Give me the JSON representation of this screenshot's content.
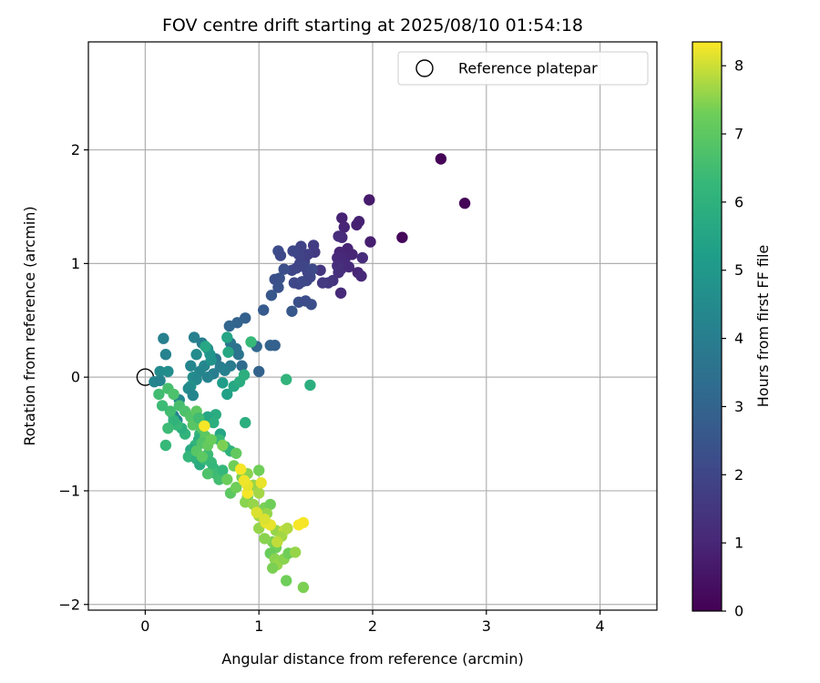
{
  "chart_data": {
    "type": "scatter",
    "title": "FOV centre drift starting at 2025/08/10 01:54:18",
    "xlabel": "Angular distance from reference (arcmin)",
    "ylabel": "Rotation from reference (arcmin)",
    "xlim": [
      -0.5,
      4.5
    ],
    "ylim": [
      -2.05,
      2.95
    ],
    "xticks": [
      0,
      1,
      2,
      3,
      4
    ],
    "yticks": [
      -2,
      -1,
      0,
      1,
      2
    ],
    "xtick_labels": [
      "0",
      "1",
      "2",
      "3",
      "4"
    ],
    "ytick_labels": [
      "−2",
      "−1",
      "0",
      "1",
      "2"
    ],
    "grid": true,
    "legend": {
      "position": "top-right",
      "label": "Reference platepar"
    },
    "reference_point": {
      "x": 0,
      "y": 0
    },
    "colorbar": {
      "label": "Hours from first FF file",
      "colormap": "viridis",
      "range": [
        0,
        8.35
      ],
      "ticks": [
        0,
        1,
        2,
        3,
        4,
        5,
        6,
        7,
        8
      ],
      "tick_labels": [
        "0",
        "1",
        "2",
        "3",
        "4",
        "5",
        "6",
        "7",
        "8"
      ]
    },
    "points": [
      [
        2.6,
        1.92,
        0.05
      ],
      [
        2.81,
        1.53,
        0.1
      ],
      [
        2.26,
        1.23,
        0.2
      ],
      [
        1.97,
        1.56,
        0.7
      ],
      [
        1.98,
        1.19,
        0.8
      ],
      [
        1.88,
        1.37,
        0.9
      ],
      [
        1.86,
        1.34,
        0.85
      ],
      [
        1.73,
        1.4,
        0.9
      ],
      [
        1.75,
        1.32,
        1.0
      ],
      [
        1.73,
        1.23,
        1.1
      ],
      [
        1.7,
        1.24,
        1.2
      ],
      [
        1.78,
        1.13,
        0.95
      ],
      [
        1.71,
        1.1,
        1.0
      ],
      [
        1.69,
        1.05,
        1.1
      ],
      [
        1.76,
        1.05,
        1.05
      ],
      [
        1.82,
        1.08,
        1.0
      ],
      [
        1.75,
        1.0,
        1.15
      ],
      [
        1.69,
        0.98,
        1.2
      ],
      [
        1.72,
        0.95,
        1.25
      ],
      [
        1.7,
        0.92,
        1.3
      ],
      [
        1.79,
        0.97,
        1.1
      ],
      [
        1.87,
        0.92,
        1.0
      ],
      [
        1.9,
        0.89,
        1.1
      ],
      [
        1.91,
        1.05,
        1.2
      ],
      [
        1.72,
        0.74,
        1.1
      ],
      [
        1.65,
        0.85,
        1.4
      ],
      [
        1.61,
        0.83,
        1.5
      ],
      [
        1.56,
        0.83,
        1.6
      ],
      [
        1.54,
        0.94,
        1.5
      ],
      [
        1.49,
        1.1,
        1.6
      ],
      [
        1.48,
        1.16,
        1.7
      ],
      [
        1.43,
        1.08,
        1.75
      ],
      [
        1.4,
        1.02,
        1.8
      ],
      [
        1.37,
        1.15,
        1.9
      ],
      [
        1.35,
        1.08,
        1.9
      ],
      [
        1.3,
        1.11,
        2.0
      ],
      [
        1.36,
        1.0,
        1.9
      ],
      [
        1.4,
        0.97,
        2.0
      ],
      [
        1.33,
        0.96,
        1.95
      ],
      [
        1.29,
        0.94,
        2.0
      ],
      [
        1.31,
        0.83,
        2.05
      ],
      [
        1.35,
        0.82,
        2.0
      ],
      [
        1.38,
        0.84,
        2.1
      ],
      [
        1.42,
        0.85,
        2.05
      ],
      [
        1.45,
        0.88,
        2.0
      ],
      [
        1.43,
        0.92,
        1.95
      ],
      [
        1.47,
        0.95,
        2.1
      ],
      [
        1.17,
        1.11,
        2.2
      ],
      [
        1.19,
        1.07,
        2.1
      ],
      [
        1.22,
        0.95,
        2.3
      ],
      [
        1.18,
        0.87,
        2.4
      ],
      [
        1.14,
        0.86,
        2.3
      ],
      [
        1.17,
        0.79,
        2.4
      ],
      [
        1.11,
        0.72,
        2.6
      ],
      [
        1.35,
        0.66,
        2.3
      ],
      [
        1.41,
        0.67,
        2.2
      ],
      [
        1.46,
        0.64,
        2.25
      ],
      [
        1.29,
        0.58,
        2.6
      ],
      [
        1.04,
        0.59,
        2.7
      ],
      [
        0.88,
        0.52,
        2.9
      ],
      [
        0.81,
        0.48,
        3.0
      ],
      [
        0.74,
        0.45,
        3.1
      ],
      [
        1.1,
        0.28,
        3.0
      ],
      [
        1.14,
        0.28,
        2.9
      ],
      [
        0.98,
        0.27,
        3.1
      ],
      [
        1.0,
        0.05,
        2.95
      ],
      [
        0.75,
        0.3,
        3.7
      ],
      [
        0.8,
        0.25,
        3.5
      ],
      [
        0.82,
        0.2,
        3.6
      ],
      [
        0.85,
        0.1,
        3.3
      ],
      [
        0.75,
        0.1,
        3.9
      ],
      [
        0.62,
        0.16,
        3.7
      ],
      [
        0.66,
        0.09,
        4.0
      ],
      [
        0.7,
        0.06,
        4.1
      ],
      [
        0.6,
        0.03,
        4.0
      ],
      [
        0.55,
        0.0,
        4.2
      ],
      [
        0.48,
        0.05,
        4.3
      ],
      [
        0.52,
        0.1,
        4.35
      ],
      [
        0.45,
        0.2,
        4.5
      ],
      [
        0.43,
        0.35,
        4.1
      ],
      [
        0.5,
        0.3,
        4.0
      ],
      [
        0.55,
        0.25,
        4.4
      ],
      [
        0.4,
        0.1,
        4.3
      ],
      [
        0.42,
        0.0,
        4.6
      ],
      [
        0.45,
        -0.02,
        4.4
      ],
      [
        0.4,
        -0.08,
        4.7
      ],
      [
        0.38,
        -0.1,
        4.5
      ],
      [
        0.42,
        -0.16,
        4.3
      ],
      [
        0.3,
        -0.2,
        4.4
      ],
      [
        0.25,
        -0.34,
        4.2
      ],
      [
        0.28,
        -0.38,
        4.3
      ],
      [
        0.16,
        0.34,
        4.1
      ],
      [
        0.18,
        0.2,
        4.2
      ],
      [
        0.2,
        0.05,
        4.6
      ],
      [
        0.13,
        0.05,
        4.5
      ],
      [
        0.08,
        -0.04,
        4.3
      ],
      [
        0.13,
        -0.03,
        4.2
      ],
      [
        0.58,
        0.15,
        4.8
      ],
      [
        0.57,
        0.2,
        4.9
      ],
      [
        0.53,
        0.27,
        5.6
      ],
      [
        0.72,
        0.35,
        5.5
      ],
      [
        0.73,
        0.22,
        5.6
      ],
      [
        0.68,
        -0.05,
        5.2
      ],
      [
        0.72,
        -0.15,
        5.3
      ],
      [
        0.78,
        -0.08,
        5.6
      ],
      [
        0.83,
        -0.04,
        5.8
      ],
      [
        0.87,
        0.02,
        5.9
      ],
      [
        0.93,
        0.31,
        6.3
      ],
      [
        1.24,
        -0.02,
        6.1
      ],
      [
        1.45,
        -0.07,
        5.9
      ],
      [
        0.88,
        -0.4,
        5.9
      ],
      [
        0.66,
        -0.5,
        5.5
      ],
      [
        0.62,
        -0.33,
        5.8
      ],
      [
        0.65,
        -0.55,
        6.3
      ],
      [
        0.7,
        -0.61,
        6.1
      ],
      [
        0.75,
        -0.65,
        6.0
      ],
      [
        0.55,
        -0.35,
        5.6
      ],
      [
        0.6,
        -0.4,
        5.9
      ],
      [
        0.52,
        -0.43,
        5.7
      ],
      [
        0.5,
        -0.46,
        6.0
      ],
      [
        0.48,
        -0.5,
        6.2
      ],
      [
        0.47,
        -0.55,
        5.9
      ],
      [
        0.44,
        -0.6,
        6.1
      ],
      [
        0.4,
        -0.64,
        5.7
      ],
      [
        0.38,
        -0.7,
        6.2
      ],
      [
        0.45,
        -0.72,
        6.0
      ],
      [
        0.48,
        -0.77,
        5.8
      ],
      [
        0.52,
        -0.72,
        6.3
      ],
      [
        0.55,
        -0.68,
        6.4
      ],
      [
        0.58,
        -0.75,
        6.3
      ],
      [
        0.6,
        -0.8,
        6.2
      ],
      [
        0.62,
        -0.85,
        6.4
      ],
      [
        0.65,
        -0.9,
        6.5
      ],
      [
        0.68,
        -0.82,
        6.2
      ],
      [
        0.35,
        -0.5,
        6.1
      ],
      [
        0.32,
        -0.45,
        5.9
      ],
      [
        0.28,
        -0.42,
        6.3
      ],
      [
        0.25,
        -0.38,
        6.1
      ],
      [
        0.2,
        -0.45,
        6.4
      ],
      [
        0.18,
        -0.6,
        6.3
      ],
      [
        0.22,
        -0.3,
        6.5
      ],
      [
        0.15,
        -0.25,
        6.4
      ],
      [
        0.12,
        -0.15,
        6.5
      ],
      [
        0.2,
        -0.1,
        6.6
      ],
      [
        0.25,
        -0.15,
        6.7
      ],
      [
        0.3,
        -0.25,
        6.6
      ],
      [
        0.35,
        -0.3,
        6.7
      ],
      [
        0.4,
        -0.35,
        6.8
      ],
      [
        0.42,
        -0.42,
        6.9
      ],
      [
        0.45,
        -0.3,
        7.0
      ],
      [
        0.47,
        -0.36,
        6.5
      ],
      [
        0.5,
        -0.45,
        6.9
      ],
      [
        0.53,
        -0.52,
        7.0
      ],
      [
        0.5,
        -0.58,
        6.8
      ],
      [
        0.55,
        -0.6,
        7.1
      ],
      [
        0.45,
        -0.65,
        6.9
      ],
      [
        0.5,
        -0.7,
        7.0
      ],
      [
        0.58,
        -0.55,
        7.2
      ],
      [
        0.55,
        -0.85,
        6.7
      ],
      [
        0.68,
        -0.6,
        7.4
      ],
      [
        0.72,
        -0.9,
        7.2
      ],
      [
        0.78,
        -0.78,
        7.3
      ],
      [
        0.8,
        -0.67,
        7.1
      ],
      [
        0.75,
        -1.02,
        7.0
      ],
      [
        0.8,
        -0.97,
        7.3
      ],
      [
        0.85,
        -0.88,
        7.4
      ],
      [
        0.9,
        -0.85,
        7.5
      ],
      [
        0.95,
        -0.95,
        7.6
      ],
      [
        0.9,
        -1.05,
        7.3
      ],
      [
        0.88,
        -1.1,
        7.5
      ],
      [
        0.95,
        -1.12,
        7.6
      ],
      [
        1.0,
        -1.02,
        7.7
      ],
      [
        1.0,
        -0.82,
        7.3
      ],
      [
        1.05,
        -1.15,
        7.4
      ],
      [
        1.1,
        -1.12,
        7.3
      ],
      [
        1.07,
        -1.2,
        7.6
      ],
      [
        1.0,
        -1.22,
        7.7
      ],
      [
        1.05,
        -1.25,
        7.8
      ],
      [
        1.1,
        -1.3,
        7.5
      ],
      [
        1.15,
        -1.35,
        7.6
      ],
      [
        1.12,
        -1.45,
        7.4
      ],
      [
        1.15,
        -1.5,
        7.3
      ],
      [
        1.1,
        -1.55,
        7.2
      ],
      [
        1.14,
        -1.6,
        7.5
      ],
      [
        1.16,
        -1.65,
        7.6
      ],
      [
        1.12,
        -1.68,
        7.4
      ],
      [
        1.22,
        -1.6,
        7.5
      ],
      [
        1.26,
        -1.55,
        7.3
      ],
      [
        1.32,
        -1.54,
        7.6
      ],
      [
        1.22,
        -1.35,
        7.9
      ],
      [
        1.2,
        -1.4,
        7.7
      ],
      [
        1.25,
        -1.33,
        7.8
      ],
      [
        1.05,
        -1.42,
        7.5
      ],
      [
        1.0,
        -1.33,
        7.6
      ],
      [
        1.24,
        -1.79,
        7.3
      ],
      [
        1.39,
        -1.85,
        7.4
      ],
      [
        1.16,
        -1.45,
        7.9
      ],
      [
        1.06,
        -1.28,
        8.2
      ],
      [
        0.98,
        -1.19,
        8.1
      ],
      [
        0.9,
        -1.02,
        8.3
      ],
      [
        0.9,
        -0.95,
        8.2
      ],
      [
        0.87,
        -0.91,
        8.25
      ],
      [
        0.84,
        -0.81,
        8.3
      ],
      [
        0.52,
        -0.43,
        8.3
      ],
      [
        1.02,
        -0.93,
        8.2
      ],
      [
        1.1,
        -1.3,
        8.2
      ],
      [
        1.35,
        -1.3,
        8.3
      ],
      [
        1.39,
        -1.28,
        8.3
      ],
      [
        1.05,
        -1.25,
        8.1
      ]
    ]
  }
}
